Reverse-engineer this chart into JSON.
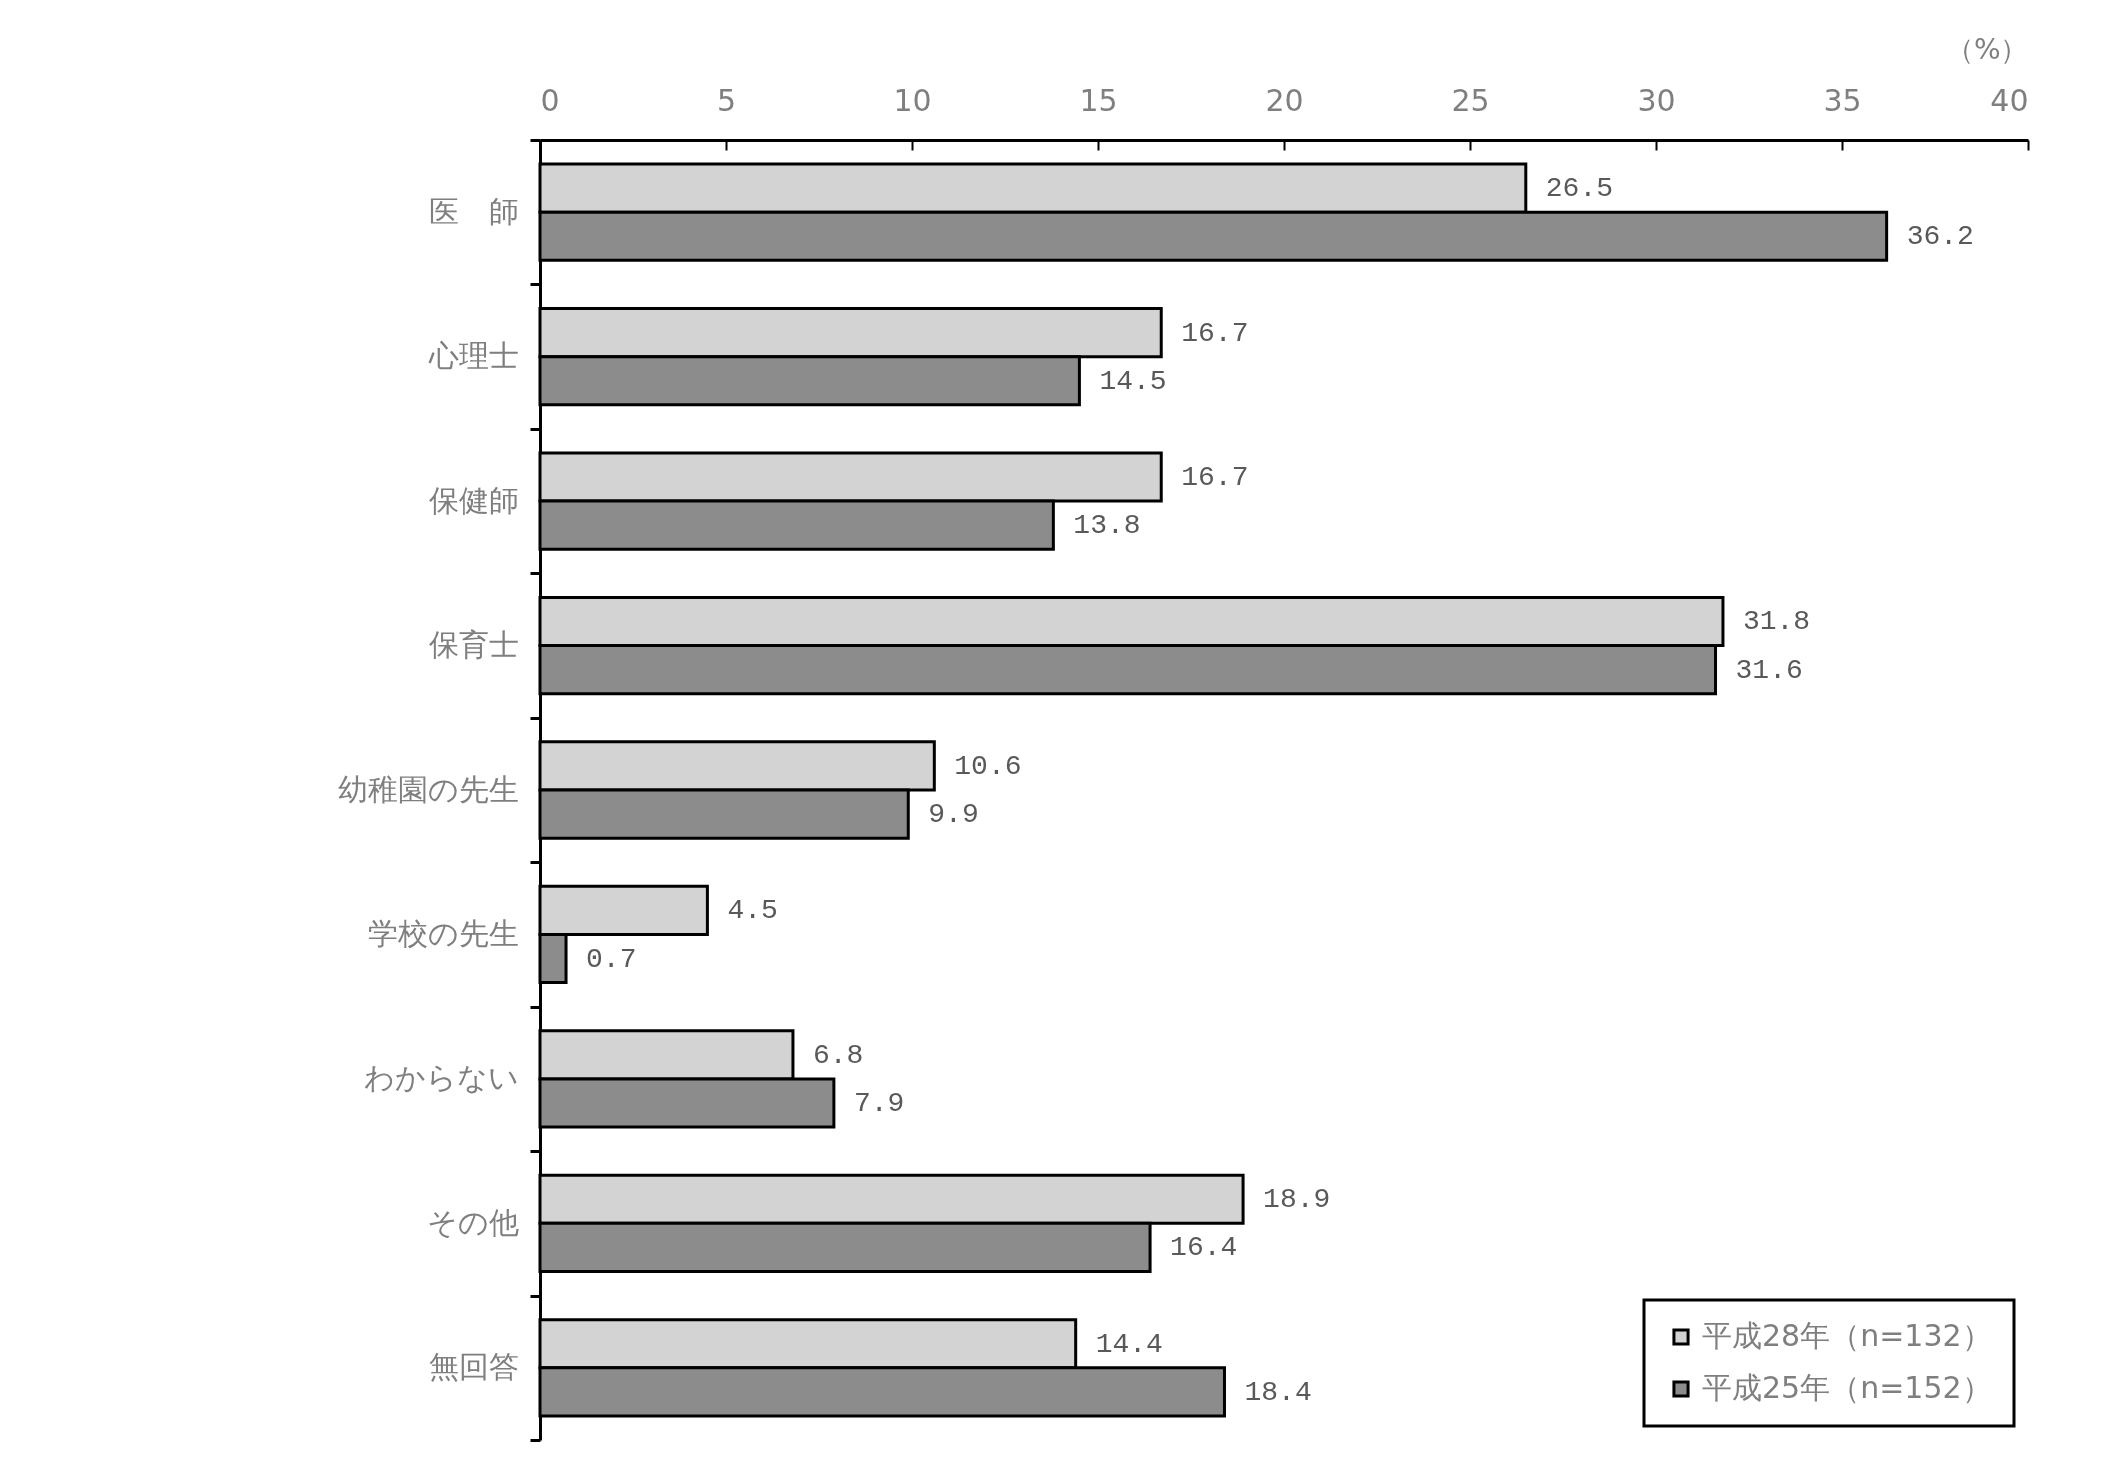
{
  "chart_data": {
    "type": "bar",
    "orientation": "horizontal",
    "xlabel": "（%）",
    "categories": [
      "医　師",
      "心理士",
      "保健師",
      "保育士",
      "幼稚園の先生",
      "学校の先生",
      "わからない",
      "その他",
      "無回答"
    ],
    "series": [
      {
        "name": "平成28年（n=132）",
        "color": "#d3d3d3",
        "values": [
          26.5,
          16.7,
          16.7,
          31.8,
          10.6,
          4.5,
          6.8,
          18.9,
          14.4
        ]
      },
      {
        "name": "平成25年（n=152）",
        "color": "#8c8c8c",
        "values": [
          36.2,
          14.5,
          13.8,
          31.6,
          9.9,
          0.7,
          7.9,
          16.4,
          18.4
        ]
      }
    ],
    "xlim": [
      0,
      40
    ],
    "xticks": [
      0,
      5,
      10,
      15,
      20,
      25,
      30,
      35,
      40
    ],
    "data_labels": true,
    "legend": "bottom right"
  }
}
